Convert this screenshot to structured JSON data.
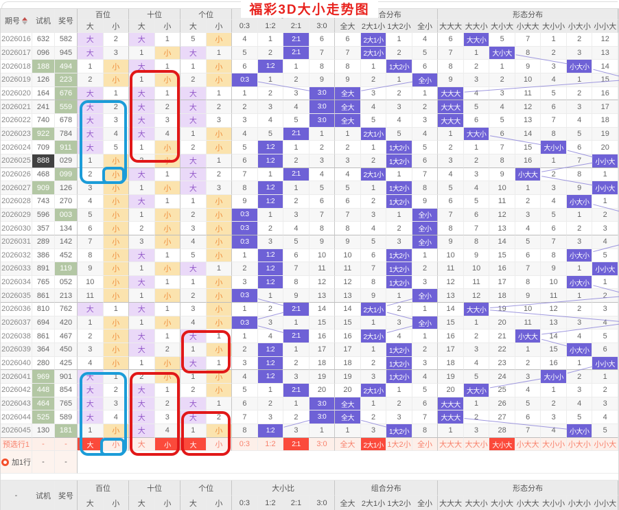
{
  "title": "福彩3D大小走势图",
  "colors": {
    "hit_main": "#6e61d6",
    "hit_big_bg": "#ead9f8",
    "hit_big_text": "#9257c9",
    "hit_small_bg": "#fbe3ae",
    "hit_small_text": "#ef8f3e",
    "green_cell": "#b3c7a4",
    "dark_cell": "#414141",
    "preselect_bg": "#fdefe9",
    "preselect_text": "#f8816c",
    "preselect_hit": "#fb4a3b",
    "title_red": "#e8231e",
    "trend_line": "#8e86da",
    "annotation_red": "#e11818",
    "annotation_blue": "#1b9cd8"
  },
  "header": {
    "period": "期号",
    "shiji": "试机",
    "jiang": "奖号",
    "groups": [
      {
        "label": "百位",
        "cols": [
          "大",
          "小"
        ]
      },
      {
        "label": "十位",
        "cols": [
          "大",
          "小"
        ]
      },
      {
        "label": "个位",
        "cols": [
          "大",
          "小"
        ]
      },
      {
        "label": "大小比",
        "cols": [
          "0:3",
          "1:2",
          "2:1",
          "3:0"
        ]
      },
      {
        "label": "组合分布",
        "cols": [
          "全大",
          "2大1小",
          "1大2小",
          "全小"
        ]
      },
      {
        "label": "形态分布",
        "cols": [
          "大大大",
          "大大小",
          "大小大",
          "小大大",
          "大小小",
          "小大小",
          "小小大"
        ]
      }
    ]
  },
  "rows": [
    {
      "qi": "2026016",
      "sj": "632",
      "sjc": "",
      "jh": "582",
      "jhc": "",
      "bai": [
        "大",
        "2"
      ],
      "shi": [
        "大",
        "1"
      ],
      "ge": [
        "5",
        "小"
      ],
      "dxb": [
        "4",
        "1",
        "2:1",
        "6"
      ],
      "zh": [
        "6",
        "2大1小",
        "1",
        "4"
      ],
      "xt": [
        "6",
        "大大小",
        "5",
        "7",
        "1",
        "2",
        "12"
      ],
      "off": false
    },
    {
      "qi": "2026017",
      "sj": "096",
      "sjc": "",
      "jh": "945",
      "jhc": "",
      "bai": [
        "大",
        "3"
      ],
      "shi": [
        "1",
        "小"
      ],
      "ge": [
        "大",
        "1"
      ],
      "dxb": [
        "5",
        "2",
        "2:1",
        "7"
      ],
      "zh": [
        "7",
        "2大1小",
        "2",
        "5"
      ],
      "xt": [
        "7",
        "1",
        "大小大",
        "8",
        "2",
        "3",
        "13"
      ],
      "off": false
    },
    {
      "qi": "2026018",
      "sj": "188",
      "sjc": "g",
      "jh": "494",
      "jhc": "g",
      "bai": [
        "1",
        "小"
      ],
      "shi": [
        "大",
        "1"
      ],
      "ge": [
        "1",
        "小"
      ],
      "dxb": [
        "6",
        "1:2",
        "1",
        "8"
      ],
      "zh": [
        "8",
        "1",
        "1大2小",
        "6"
      ],
      "xt": [
        "8",
        "2",
        "1",
        "9",
        "3",
        "小大小",
        "14"
      ],
      "off": false
    },
    {
      "qi": "2026019",
      "sj": "126",
      "sjc": "",
      "jh": "223",
      "jhc": "g",
      "bai": [
        "2",
        "小"
      ],
      "shi": [
        "1",
        "小"
      ],
      "ge": [
        "2",
        "小"
      ],
      "dxb": [
        "0:3",
        "1",
        "2",
        "9"
      ],
      "zh": [
        "9",
        "2",
        "1",
        "全小"
      ],
      "xt": [
        "9",
        "3",
        "2",
        "10",
        "4",
        "1",
        "15"
      ],
      "off": true
    },
    {
      "qi": "2026020",
      "sj": "164",
      "sjc": "",
      "jh": "676",
      "jhc": "g",
      "bai": [
        "大",
        "1"
      ],
      "shi": [
        "大",
        "1"
      ],
      "ge": [
        "大",
        "1"
      ],
      "dxb": [
        "1",
        "2",
        "3",
        "3:0"
      ],
      "zh": [
        "全大",
        "3",
        "2",
        "1"
      ],
      "xt": [
        "大大大",
        "4",
        "3",
        "11",
        "5",
        "2",
        "16"
      ],
      "off": false
    },
    {
      "qi": "2026021",
      "sj": "241",
      "sjc": "",
      "jh": "559",
      "jhc": "g",
      "bai": [
        "大",
        "2"
      ],
      "shi": [
        "大",
        "2"
      ],
      "ge": [
        "大",
        "2"
      ],
      "dxb": [
        "2",
        "3",
        "4",
        "3:0"
      ],
      "zh": [
        "全大",
        "4",
        "3",
        "2"
      ],
      "xt": [
        "大大大",
        "5",
        "4",
        "12",
        "6",
        "3",
        "17"
      ],
      "off": false
    },
    {
      "qi": "2026022",
      "sj": "740",
      "sjc": "",
      "jh": "678",
      "jhc": "",
      "bai": [
        "大",
        "3"
      ],
      "shi": [
        "大",
        "3"
      ],
      "ge": [
        "大",
        "3"
      ],
      "dxb": [
        "3",
        "4",
        "5",
        "3:0"
      ],
      "zh": [
        "全大",
        "5",
        "4",
        "3"
      ],
      "xt": [
        "大大大",
        "6",
        "5",
        "13",
        "7",
        "4",
        "18"
      ],
      "off": false
    },
    {
      "qi": "2026023",
      "sj": "922",
      "sjc": "g",
      "jh": "784",
      "jhc": "",
      "bai": [
        "大",
        "4"
      ],
      "shi": [
        "大",
        "4"
      ],
      "ge": [
        "1",
        "小"
      ],
      "dxb": [
        "4",
        "5",
        "2:1",
        "1"
      ],
      "zh": [
        "1",
        "2大1小",
        "5",
        "4"
      ],
      "xt": [
        "1",
        "大大小",
        "6",
        "14",
        "8",
        "5",
        "19"
      ],
      "off": false
    },
    {
      "qi": "2026024",
      "sj": "709",
      "sjc": "",
      "jh": "911",
      "jhc": "g",
      "bai": [
        "大",
        "5"
      ],
      "shi": [
        "1",
        "小"
      ],
      "ge": [
        "2",
        "小"
      ],
      "dxb": [
        "5",
        "1:2",
        "1",
        "2"
      ],
      "zh": [
        "2",
        "1",
        "1大2小",
        "5"
      ],
      "xt": [
        "2",
        "1",
        "7",
        "15",
        "大小小",
        "6",
        "20"
      ],
      "off": false
    },
    {
      "qi": "2026025",
      "sj": "888",
      "sjc": "d",
      "jh": "029",
      "jhc": "",
      "bai": [
        "1",
        "小"
      ],
      "shi": [
        "2",
        "小"
      ],
      "ge": [
        "大",
        "1"
      ],
      "dxb": [
        "6",
        "1:2",
        "2",
        "3"
      ],
      "zh": [
        "3",
        "2",
        "1大2小",
        "6"
      ],
      "xt": [
        "3",
        "2",
        "8",
        "16",
        "1",
        "7",
        "小小大"
      ],
      "off": false
    },
    {
      "qi": "2026026",
      "sj": "468",
      "sjc": "",
      "jh": "099",
      "jhc": "g",
      "bai": [
        "2",
        "小"
      ],
      "shi": [
        "大",
        "1"
      ],
      "ge": [
        "大",
        "2"
      ],
      "dxb": [
        "7",
        "1",
        "2:1",
        "4"
      ],
      "zh": [
        "4",
        "2大1小",
        "1",
        "7"
      ],
      "xt": [
        "4",
        "3",
        "9",
        "小大大",
        "2",
        "8",
        "1"
      ],
      "off": false
    },
    {
      "qi": "2026027",
      "sj": "909",
      "sjc": "g",
      "jh": "126",
      "jhc": "",
      "bai": [
        "3",
        "小"
      ],
      "shi": [
        "1",
        "小"
      ],
      "ge": [
        "大",
        "3"
      ],
      "dxb": [
        "8",
        "1:2",
        "1",
        "5"
      ],
      "zh": [
        "5",
        "1",
        "1大2小",
        "8"
      ],
      "xt": [
        "5",
        "4",
        "10",
        "1",
        "3",
        "9",
        "小小大"
      ],
      "off": false
    },
    {
      "qi": "2026028",
      "sj": "743",
      "sjc": "",
      "jh": "270",
      "jhc": "",
      "bai": [
        "4",
        "小"
      ],
      "shi": [
        "大",
        "1"
      ],
      "ge": [
        "1",
        "小"
      ],
      "dxb": [
        "9",
        "1:2",
        "2",
        "6"
      ],
      "zh": [
        "6",
        "2",
        "1大2小",
        "9"
      ],
      "xt": [
        "6",
        "5",
        "11",
        "2",
        "4",
        "小大小",
        "1"
      ],
      "off": false
    },
    {
      "qi": "2026029",
      "sj": "596",
      "sjc": "",
      "jh": "003",
      "jhc": "g",
      "bai": [
        "5",
        "小"
      ],
      "shi": [
        "1",
        "小"
      ],
      "ge": [
        "2",
        "小"
      ],
      "dxb": [
        "0:3",
        "1",
        "3",
        "7"
      ],
      "zh": [
        "7",
        "3",
        "1",
        "全小"
      ],
      "xt": [
        "7",
        "6",
        "12",
        "3",
        "5",
        "1",
        "2"
      ],
      "off": true
    },
    {
      "qi": "2026030",
      "sj": "357",
      "sjc": "",
      "jh": "134",
      "jhc": "",
      "bai": [
        "6",
        "小"
      ],
      "shi": [
        "2",
        "小"
      ],
      "ge": [
        "3",
        "小"
      ],
      "dxb": [
        "0:3",
        "2",
        "4",
        "8"
      ],
      "zh": [
        "8",
        "4",
        "2",
        "全小"
      ],
      "xt": [
        "8",
        "7",
        "13",
        "4",
        "6",
        "2",
        "3"
      ],
      "off": true
    },
    {
      "qi": "2026031",
      "sj": "289",
      "sjc": "",
      "jh": "142",
      "jhc": "",
      "bai": [
        "7",
        "小"
      ],
      "shi": [
        "3",
        "小"
      ],
      "ge": [
        "4",
        "小"
      ],
      "dxb": [
        "0:3",
        "3",
        "5",
        "9"
      ],
      "zh": [
        "9",
        "5",
        "3",
        "全小"
      ],
      "xt": [
        "9",
        "8",
        "14",
        "5",
        "7",
        "3",
        "4"
      ],
      "off": true
    },
    {
      "qi": "2026032",
      "sj": "386",
      "sjc": "",
      "jh": "452",
      "jhc": "",
      "bai": [
        "8",
        "小"
      ],
      "shi": [
        "大",
        "1"
      ],
      "ge": [
        "5",
        "小"
      ],
      "dxb": [
        "1",
        "1:2",
        "6",
        "10"
      ],
      "zh": [
        "10",
        "6",
        "1大2小",
        "1"
      ],
      "xt": [
        "10",
        "9",
        "15",
        "6",
        "8",
        "小大小",
        "5"
      ],
      "off": false
    },
    {
      "qi": "2026033",
      "sj": "891",
      "sjc": "",
      "jh": "119",
      "jhc": "g",
      "bai": [
        "9",
        "小"
      ],
      "shi": [
        "1",
        "小"
      ],
      "ge": [
        "大",
        "1"
      ],
      "dxb": [
        "2",
        "1:2",
        "7",
        "11"
      ],
      "zh": [
        "11",
        "7",
        "1大2小",
        "2"
      ],
      "xt": [
        "11",
        "10",
        "16",
        "7",
        "9",
        "1",
        "小小大"
      ],
      "off": false
    },
    {
      "qi": "2026034",
      "sj": "765",
      "sjc": "",
      "jh": "052",
      "jhc": "",
      "bai": [
        "10",
        "小"
      ],
      "shi": [
        "大",
        "1"
      ],
      "ge": [
        "1",
        "小"
      ],
      "dxb": [
        "3",
        "1:2",
        "8",
        "12"
      ],
      "zh": [
        "12",
        "8",
        "1大2小",
        "3"
      ],
      "xt": [
        "12",
        "11",
        "17",
        "8",
        "10",
        "小大小",
        "1"
      ],
      "off": false
    },
    {
      "qi": "2026035",
      "sj": "861",
      "sjc": "",
      "jh": "213",
      "jhc": "",
      "bai": [
        "11",
        "小"
      ],
      "shi": [
        "1",
        "小"
      ],
      "ge": [
        "2",
        "小"
      ],
      "dxb": [
        "0:3",
        "1",
        "9",
        "13"
      ],
      "zh": [
        "13",
        "9",
        "1",
        "全小"
      ],
      "xt": [
        "13",
        "12",
        "18",
        "9",
        "11",
        "1",
        "2"
      ],
      "off": true
    },
    {
      "qi": "2026036",
      "sj": "810",
      "sjc": "",
      "jh": "762",
      "jhc": "",
      "bai": [
        "大",
        "1"
      ],
      "shi": [
        "大",
        "1"
      ],
      "ge": [
        "3",
        "小"
      ],
      "dxb": [
        "1",
        "2",
        "2:1",
        "14"
      ],
      "zh": [
        "14",
        "2大1小",
        "2",
        "1"
      ],
      "xt": [
        "14",
        "大大小",
        "19",
        "10",
        "12",
        "2",
        "3"
      ],
      "off": false
    },
    {
      "qi": "2026037",
      "sj": "694",
      "sjc": "",
      "jh": "420",
      "jhc": "",
      "bai": [
        "1",
        "小"
      ],
      "shi": [
        "1",
        "小"
      ],
      "ge": [
        "4",
        "小"
      ],
      "dxb": [
        "0:3",
        "3",
        "1",
        "15"
      ],
      "zh": [
        "15",
        "1",
        "3",
        "全小"
      ],
      "xt": [
        "15",
        "1",
        "20",
        "11",
        "13",
        "3",
        "4"
      ],
      "off": true
    },
    {
      "qi": "2026038",
      "sj": "861",
      "sjc": "",
      "jh": "467",
      "jhc": "",
      "bai": [
        "2",
        "小"
      ],
      "shi": [
        "大",
        "1"
      ],
      "ge": [
        "大",
        "1"
      ],
      "dxb": [
        "1",
        "4",
        "2:1",
        "16"
      ],
      "zh": [
        "16",
        "2大1小",
        "4",
        "1"
      ],
      "xt": [
        "16",
        "2",
        "21",
        "小大大",
        "14",
        "4",
        "5"
      ],
      "off": false
    },
    {
      "qi": "2026039",
      "sj": "364",
      "sjc": "",
      "jh": "450",
      "jhc": "",
      "bai": [
        "3",
        "小"
      ],
      "shi": [
        "大",
        "2"
      ],
      "ge": [
        "1",
        "小"
      ],
      "dxb": [
        "2",
        "1:2",
        "1",
        "17"
      ],
      "zh": [
        "17",
        "1",
        "1大2小",
        "2"
      ],
      "xt": [
        "17",
        "3",
        "22",
        "1",
        "15",
        "小大小",
        "6"
      ],
      "off": false
    },
    {
      "qi": "2026040",
      "sj": "280",
      "sjc": "",
      "jh": "425",
      "jhc": "",
      "bai": [
        "4",
        "小"
      ],
      "shi": [
        "1",
        "小"
      ],
      "ge": [
        "大",
        "1"
      ],
      "dxb": [
        "3",
        "1:2",
        "2",
        "18"
      ],
      "zh": [
        "18",
        "2",
        "1大2小",
        "3"
      ],
      "xt": [
        "18",
        "4",
        "23",
        "2",
        "16",
        "1",
        "小小大"
      ],
      "off": false
    },
    {
      "qi": "2026041",
      "sj": "969",
      "sjc": "g",
      "jh": "901",
      "jhc": "",
      "bai": [
        "大",
        "1"
      ],
      "shi": [
        "2",
        "小"
      ],
      "ge": [
        "1",
        "小"
      ],
      "dxb": [
        "4",
        "1:2",
        "3",
        "19"
      ],
      "zh": [
        "19",
        "3",
        "1大2小",
        "4"
      ],
      "xt": [
        "19",
        "5",
        "24",
        "3",
        "大小小",
        "2",
        "1"
      ],
      "off": false
    },
    {
      "qi": "2026042",
      "sj": "448",
      "sjc": "g",
      "jh": "854",
      "jhc": "",
      "bai": [
        "大",
        "2"
      ],
      "shi": [
        "大",
        "1"
      ],
      "ge": [
        "2",
        "小"
      ],
      "dxb": [
        "5",
        "1",
        "2:1",
        "20"
      ],
      "zh": [
        "20",
        "2大1小",
        "1",
        "5"
      ],
      "xt": [
        "20",
        "大大小",
        "25",
        "4",
        "1",
        "3",
        "2"
      ],
      "off": false
    },
    {
      "qi": "2026043",
      "sj": "464",
      "sjc": "g",
      "jh": "765",
      "jhc": "",
      "bai": [
        "大",
        "3"
      ],
      "shi": [
        "大",
        "2"
      ],
      "ge": [
        "大",
        "1"
      ],
      "dxb": [
        "6",
        "2",
        "1",
        "3:0"
      ],
      "zh": [
        "全大",
        "1",
        "2",
        "6"
      ],
      "xt": [
        "大大大",
        "1",
        "26",
        "5",
        "2",
        "4",
        "3"
      ],
      "off": false
    },
    {
      "qi": "2026044",
      "sj": "525",
      "sjc": "g",
      "jh": "589",
      "jhc": "",
      "bai": [
        "大",
        "4"
      ],
      "shi": [
        "大",
        "3"
      ],
      "ge": [
        "大",
        "2"
      ],
      "dxb": [
        "7",
        "3",
        "2",
        "3:0"
      ],
      "zh": [
        "全大",
        "2",
        "3",
        "7"
      ],
      "xt": [
        "大大大",
        "2",
        "27",
        "6",
        "3",
        "5",
        "4"
      ],
      "off": false
    },
    {
      "qi": "2026045",
      "sj": "130",
      "sjc": "",
      "jh": "181",
      "jhc": "g",
      "bai": [
        "1",
        "小"
      ],
      "shi": [
        "大",
        "4"
      ],
      "ge": [
        "1",
        "小"
      ],
      "dxb": [
        "8",
        "1:2",
        "3",
        "1"
      ],
      "zh": [
        "1",
        "3",
        "1大2小",
        "8"
      ],
      "xt": [
        "1",
        "3",
        "28",
        "7",
        "4",
        "小大小",
        "5"
      ],
      "off": false
    }
  ],
  "preselect": {
    "label": "预选行1",
    "sj": "-",
    "jh": "-",
    "bai": [
      "大",
      "小"
    ],
    "shi": [
      "大",
      "小"
    ],
    "ge": [
      "大",
      "小"
    ],
    "dxb": [
      "0:3",
      "1:2",
      "2:1",
      "3:0"
    ],
    "zh": [
      "全大",
      "2大1小",
      "1大2小",
      "全小"
    ],
    "xt": [
      "大大大",
      "大大小",
      "大小大",
      "小大大",
      "大小小",
      "小大小",
      "小小大"
    ],
    "hits": {
      "bai": 0,
      "shi": 1,
      "ge": 0,
      "dxb": 2,
      "zh": 1,
      "xt": 2
    }
  },
  "addrow": {
    "label": "加1行",
    "sj": "-",
    "jh": "-"
  },
  "footer_first": "-"
}
